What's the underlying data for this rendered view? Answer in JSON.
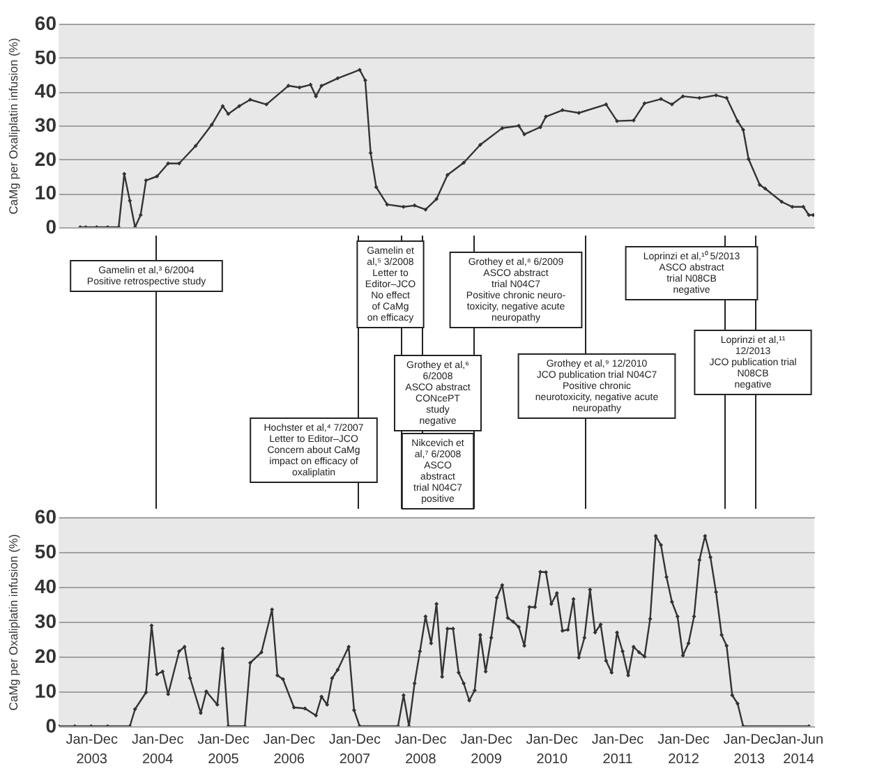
{
  "chart_data": [
    {
      "type": "line",
      "ylabel": "CaMg per Oxaliplatin infusion (%)",
      "color": "#333333",
      "marker": "diamond",
      "grid": "y",
      "tick_labels": "y",
      "xlim": [
        "2003-01-01",
        "2014-07-01"
      ],
      "ylim": [
        0,
        60
      ],
      "yticks": [
        0,
        10,
        20,
        30,
        40,
        50,
        60
      ],
      "x": [
        "2003-05",
        "2003-06",
        "2003-08",
        "2003-10",
        "2003-12",
        "2004-01",
        "2004-02",
        "2004-03",
        "2004-04",
        "2004-05",
        "2004-07",
        "2004-09",
        "2004-11",
        "2005-02",
        "2005-05",
        "2005-07",
        "2005-08",
        "2005-10",
        "2005-12",
        "2006-03",
        "2006-07",
        "2006-09",
        "2006-11",
        "2006-12",
        "2007-01",
        "2007-04",
        "2007-08",
        "2007-09",
        "2007-10",
        "2007-11",
        "2008-01",
        "2008-04",
        "2008-06",
        "2008-08",
        "2008-10",
        "2008-12",
        "2009-03",
        "2009-06",
        "2009-10",
        "2010-01",
        "2010-02",
        "2010-05",
        "2010-06",
        "2010-09",
        "2010-12",
        "2011-05",
        "2011-07",
        "2011-10",
        "2011-12",
        "2012-03",
        "2012-05",
        "2012-07",
        "2012-10",
        "2013-01",
        "2013-03",
        "2013-05",
        "2013-06",
        "2013-07",
        "2013-09",
        "2013-10",
        "2014-01",
        "2014-03",
        "2014-05",
        "2014-06",
        "2014-06-25"
      ],
      "values": [
        0,
        0,
        0,
        0,
        0,
        15.7,
        7.8,
        0,
        3.6,
        13.8,
        15,
        18.8,
        18.8,
        24,
        30.2,
        35.7,
        33.4,
        35.7,
        37.6,
        36.2,
        41.7,
        41.2,
        42,
        38.6,
        41.7,
        43.9,
        46.4,
        43.3,
        21.9,
        11.8,
        6.7,
        6,
        6.4,
        5.2,
        8.3,
        15.4,
        19,
        24.3,
        29.2,
        29.9,
        27.4,
        29.5,
        32.6,
        34.5,
        33.7,
        36.2,
        31.3,
        31.5,
        36.5,
        37.8,
        36.2,
        38.6,
        38.1,
        38.9,
        38.1,
        31.3,
        28.7,
        20.1,
        12.5,
        11.4,
        7.5,
        6,
        6,
        3.6,
        3.6
      ]
    },
    {
      "type": "line",
      "ylabel": "CaMg per Oxaliplatin infusion (%)",
      "color": "#333333",
      "marker": "diamond",
      "grid": "y",
      "xlim": [
        "2003-01-01",
        "2014-07-01"
      ],
      "ylim": [
        0,
        60
      ],
      "yticks": [
        0,
        10,
        20,
        30,
        40,
        50,
        60
      ],
      "xticks": [
        {
          "value": "2003-07-01",
          "label": "Jan-Dec\n2003"
        },
        {
          "value": "2004-07-01",
          "label": "Jan-Dec\n2004"
        },
        {
          "value": "2005-07-01",
          "label": "Jan-Dec\n2005"
        },
        {
          "value": "2006-07-01",
          "label": "Jan-Dec\n2006"
        },
        {
          "value": "2007-07-01",
          "label": "Jan-Dec\n2007"
        },
        {
          "value": "2008-07-01",
          "label": "Jan-Dec\n2008"
        },
        {
          "value": "2009-07-01",
          "label": "Jan-Dec\n2009"
        },
        {
          "value": "2010-07-01",
          "label": "Jan-Dec\n2010"
        },
        {
          "value": "2011-07-01",
          "label": "Jan-Dec\n2011"
        },
        {
          "value": "2012-07-01",
          "label": "Jan-Dec\n2012"
        },
        {
          "value": "2013-07-01",
          "label": "Jan-Dec\n2013"
        },
        {
          "value": "2014-04-01",
          "label": "Jan-Jun\n2014"
        }
      ],
      "x": [
        "2003-01",
        "2003-04",
        "2003-07",
        "2003-10",
        "2004-02",
        "2004-03",
        "2004-05",
        "2004-06",
        "2004-07",
        "2004-08",
        "2004-09",
        "2004-11",
        "2004-12",
        "2005-01",
        "2005-03",
        "2005-04",
        "2005-06",
        "2005-07",
        "2005-08",
        "2005-11",
        "2005-12",
        "2006-02",
        "2006-04",
        "2006-05",
        "2006-06",
        "2006-08",
        "2006-10",
        "2006-12",
        "2007-01",
        "2007-02",
        "2007-03",
        "2007-04",
        "2007-06",
        "2007-07",
        "2007-08",
        "2008-03",
        "2008-04",
        "2008-05",
        "2008-06",
        "2008-07",
        "2008-08",
        "2008-09",
        "2008-10",
        "2008-11",
        "2008-12",
        "2009-01",
        "2009-02",
        "2009-03",
        "2009-04",
        "2009-05",
        "2009-06",
        "2009-07",
        "2009-08",
        "2009-09",
        "2009-10",
        "2009-11",
        "2009-12",
        "2010-01",
        "2010-02",
        "2010-03",
        "2010-04",
        "2010-05",
        "2010-06",
        "2010-07",
        "2010-08",
        "2010-09",
        "2010-10",
        "2010-11",
        "2010-12",
        "2011-01",
        "2011-02",
        "2011-03",
        "2011-04",
        "2011-05",
        "2011-06",
        "2011-07",
        "2011-08",
        "2011-09",
        "2011-10",
        "2011-11",
        "2011-12",
        "2012-01",
        "2012-02",
        "2012-03",
        "2012-04",
        "2012-05",
        "2012-06",
        "2012-07",
        "2012-08",
        "2012-09",
        "2012-10",
        "2012-11",
        "2012-12",
        "2013-01",
        "2013-02",
        "2013-03",
        "2013-04",
        "2013-05",
        "2013-06",
        "2014-06"
      ],
      "values": [
        0,
        0,
        0,
        0,
        0,
        4.9,
        9.7,
        28.9,
        14.9,
        15.7,
        9.2,
        21.5,
        22.8,
        13.8,
        3.8,
        10,
        6.2,
        22.3,
        0,
        0,
        18.2,
        21.2,
        33.5,
        14.6,
        13.5,
        5.4,
        5.1,
        3.1,
        8.5,
        6.2,
        13.8,
        16.2,
        22.8,
        4.6,
        0,
        0,
        8.9,
        0,
        12.3,
        21.5,
        31.5,
        23.8,
        35.1,
        14.2,
        28,
        28,
        15.4,
        12.3,
        7.4,
        10.3,
        26.2,
        15.7,
        25.4,
        36.9,
        40.5,
        31.1,
        30,
        28.5,
        23.1,
        34.2,
        34.2,
        44.3,
        44.2,
        35.1,
        38.2,
        27.4,
        27.7,
        36.5,
        19.7,
        25.4,
        39.2,
        26.9,
        29.2,
        18.8,
        15.4,
        26.9,
        21.5,
        14.6,
        22.8,
        21.2,
        20,
        30.8,
        54.6,
        52,
        42.8,
        35.7,
        31.5,
        20.3,
        23.8,
        31.5,
        47.7,
        54.6,
        48.5,
        38.5,
        26.2,
        23.1,
        8.9,
        6.5,
        0,
        0
      ],
      "annotations": [
        "Gamelin et al,³ 6/2004\nPositive retrospective study",
        "Hochster et al,⁴ 7/2007\nLetter to Editor–JCO\nConcern about CaMg\nimpact on efficacy of\noxaliplatin",
        "Gamelin et\nal,⁵ 3/2008\nLetter to\nEditor–JCO\nNo effect\nof CaMg\non efficacy",
        "Grothey et al,⁶\n6/2008\nASCO abstract\nCONcePT\nstudy\nnegative",
        "Nikcevich et\nal,⁷ 6/2008\nASCO\nabstract\ntrial N04C7\npositive",
        "Grothey et al,⁸ 6/2009\nASCO abstract\ntrial N04C7\nPositive chronic neuro-\ntoxicity, negative acute\nneuropathy",
        "Grothey et al,⁹ 12/2010\nJCO publication trial N04C7\nPositive chronic\nneurotoxicity, negative acute\nneuropathy",
        "Loprinzi et al,¹⁰ 5/2013\nASCO abstract\ntrial N08CB\nnegative",
        "Loprinzi et al,¹¹\n12/2013\nJCO publication trial\nN08CB\nnegative"
      ]
    }
  ]
}
